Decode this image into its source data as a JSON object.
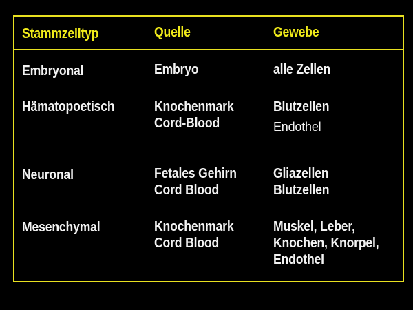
{
  "header": {
    "col1": "Stammzelltyp",
    "col2": "Quelle",
    "col3": "Gewebe"
  },
  "rows": [
    {
      "type": "Embryonal",
      "source": [
        "Embryo"
      ],
      "tissue": [
        "alle Zellen"
      ]
    },
    {
      "type": "Hämatopoetisch",
      "source": [
        "Knochenmark",
        "Cord-Blood"
      ],
      "tissue": [
        "Blutzellen",
        "Endothel"
      ]
    },
    {
      "type": "Neuronal",
      "source": [
        "Fetales Gehirn",
        "Cord Blood"
      ],
      "tissue": [
        "Gliazellen",
        "Blutzellen"
      ]
    },
    {
      "type": "Mesenchymal",
      "source": [
        "Knochenmark",
        "Cord Blood"
      ],
      "tissue": [
        "Muskel, Leber,",
        "Knochen, Knorpel,",
        "Endothel"
      ]
    }
  ],
  "colors": {
    "header_text": "#f0ea1a",
    "border": "#e8e020",
    "body_text": "#f2f2f2",
    "background": "#000000"
  }
}
